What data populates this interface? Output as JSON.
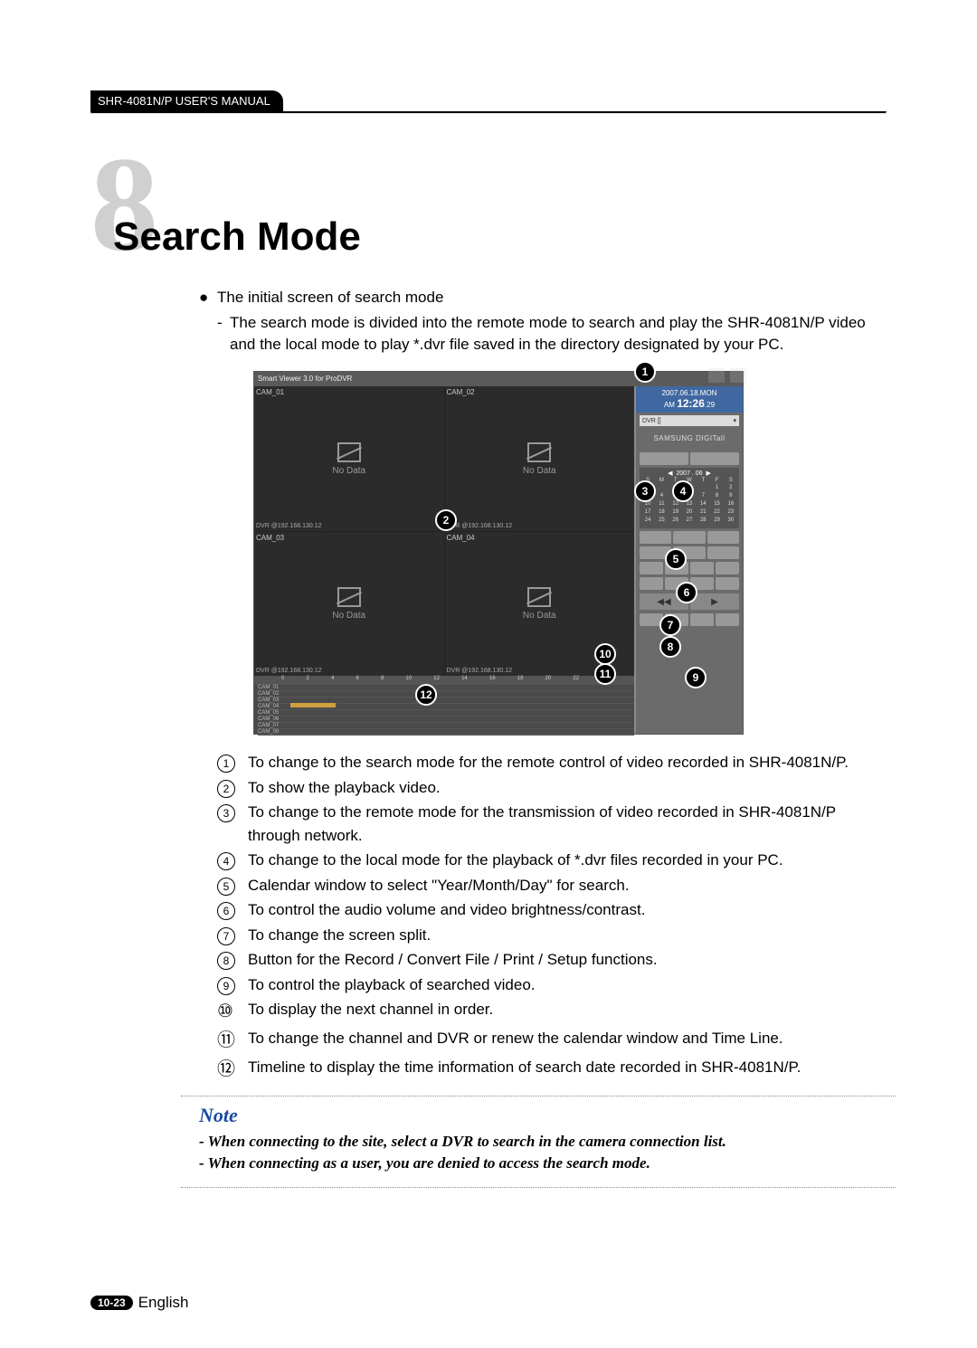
{
  "header": {
    "tab": "SHR-4081N/P USER'S MANUAL"
  },
  "chapter": {
    "number": "8",
    "title": "Search Mode"
  },
  "intro": {
    "bullet": "The initial screen of search mode",
    "dash": "The search mode is divided into the remote mode to search and play the SHR-4081N/P video and the local mode to play *.dvr file saved in the directory designated by your PC."
  },
  "screenshot": {
    "titlebar": "Smart Viewer 3.0 for ProDVR",
    "cells": [
      {
        "top": "CAM_01",
        "nodata": "No Data",
        "bottom": "DVR @192.168.130.12"
      },
      {
        "top": "CAM_02",
        "nodata": "No Data",
        "bottom": "DVR @192.168.130.12"
      },
      {
        "top": "CAM_03",
        "nodata": "No Data",
        "bottom": "DVR @192.168.130.12"
      },
      {
        "top": "CAM_04",
        "nodata": "No Data",
        "bottom": "DVR @192.168.130.12"
      }
    ],
    "clock_date": "2007.06.18.MON",
    "clock_ampm": "AM",
    "clock_time": "12:26",
    "clock_sec": ".29",
    "dvr_select": "DVR []",
    "samsung": "SAMSUNG DIGITall",
    "cal_month": "2007 . 06",
    "cal_days": [
      "S",
      "M",
      "T",
      "W",
      "T",
      "F",
      "S"
    ],
    "cal_nums": [
      "",
      "",
      "",
      "",
      "",
      "1",
      "2",
      "3",
      "4",
      "5",
      "6",
      "7",
      "8",
      "9",
      "10",
      "11",
      "12",
      "13",
      "14",
      "15",
      "16",
      "17",
      "18",
      "19",
      "20",
      "21",
      "22",
      "23",
      "24",
      "25",
      "26",
      "27",
      "28",
      "29",
      "30",
      ""
    ],
    "timeline_hours": [
      "0",
      "2",
      "4",
      "6",
      "8",
      "10",
      "12",
      "14",
      "16",
      "18",
      "20",
      "22",
      "24"
    ],
    "timeline_rows": [
      "CAM_01",
      "CAM_02",
      "CAM_03",
      "CAM_04",
      "CAM_05",
      "CAM_06",
      "CAM_07",
      "CAM_08"
    ]
  },
  "callouts": {
    "1": "1",
    "2": "2",
    "3": "3",
    "4": "4",
    "5": "5",
    "6": "6",
    "7": "7",
    "8": "8",
    "9": "9",
    "10": "10",
    "11": "11",
    "12": "12"
  },
  "legend": [
    "To change to the search mode for the remote control of video recorded in SHR-4081N/P.",
    "To show the playback video.",
    "To change to the remote mode for the transmission of video recorded in SHR-4081N/P through network.",
    "To change to the local mode for the playback of *.dvr files recorded in your PC.",
    "Calendar window to select \"Year/Month/Day\" for search.",
    "To control the audio volume and video brightness/contrast.",
    "To change the screen split.",
    "Button for the Record / Convert File / Print / Setup functions.",
    "To control the playback of searched video.",
    "To display the next channel in order.",
    "To change the channel and DVR or renew the calendar window and Time Line.",
    "Timeline to display the time information of search date recorded in SHR-4081N/P."
  ],
  "note": {
    "title": "Note",
    "lines": [
      "- When connecting to the site, select a DVR to search in the camera connection list.",
      "- When connecting as a user, you are denied to access the search mode."
    ]
  },
  "footer": {
    "badge": "10-23",
    "lang": "English"
  },
  "colors": {
    "outline_num": "#d0d0d0",
    "note_accent": "#1a4aa0",
    "clock_bg": "#4068a0"
  }
}
